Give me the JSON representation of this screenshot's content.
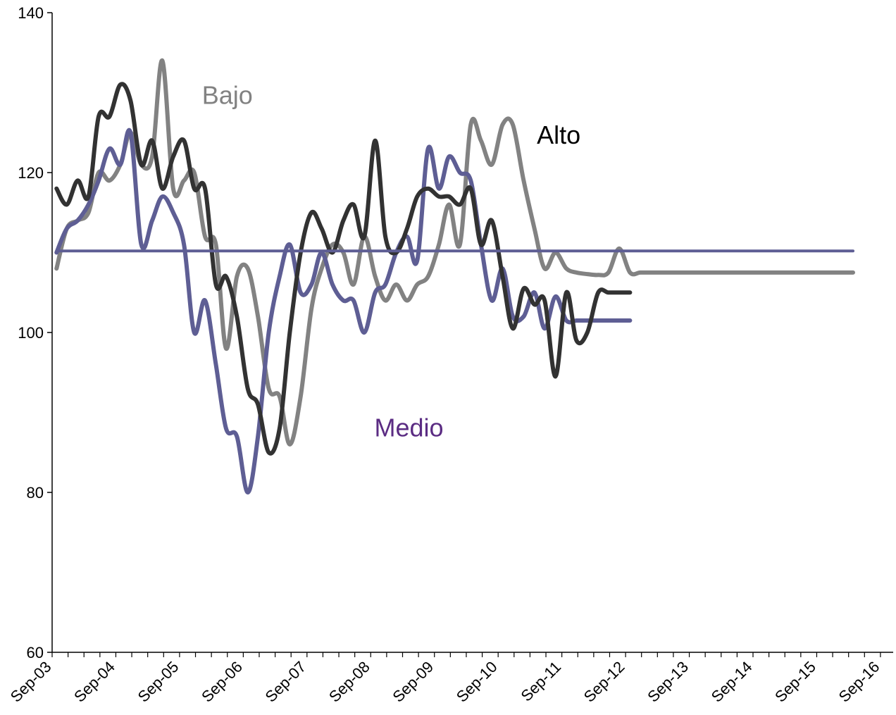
{
  "chart_data": {
    "type": "line",
    "title": "",
    "xlabel": "",
    "ylabel": "",
    "ylim": [
      60,
      140
    ],
    "yticks": [
      60,
      80,
      100,
      120,
      140
    ],
    "xtick_labels": [
      "Sep-03",
      "Sep-04",
      "Sep-05",
      "Sep-06",
      "Sep-07",
      "Sep-08",
      "Sep-09",
      "Sep-10",
      "Sep-11",
      "Sep-12",
      "Sep-13",
      "Sep-14",
      "Sep-15",
      "Sep-16"
    ],
    "x_range": [
      2003.6,
      2016.8
    ],
    "grid": false,
    "legend": "none",
    "series": [
      {
        "name": "Bajo",
        "color": "#828282",
        "x": [
          2003.67,
          2003.83,
          2004.0,
          2004.17,
          2004.33,
          2004.5,
          2004.67,
          2004.83,
          2005.0,
          2005.17,
          2005.33,
          2005.5,
          2005.67,
          2005.83,
          2006.0,
          2006.17,
          2006.33,
          2006.5,
          2006.67,
          2006.83,
          2007.0,
          2007.17,
          2007.33,
          2007.5,
          2007.67,
          2007.83,
          2008.0,
          2008.17,
          2008.33,
          2008.5,
          2008.67,
          2008.83,
          2009.0,
          2009.17,
          2009.33,
          2009.5,
          2009.67,
          2009.83,
          2010.0,
          2010.17,
          2010.33,
          2010.5,
          2010.67,
          2010.83,
          2011.0,
          2011.17,
          2011.33,
          2011.5,
          2011.67,
          2011.83,
          2012.0,
          2012.17,
          2012.33,
          2012.5,
          2012.67,
          2012.83,
          2013.0,
          2013.17,
          2013.33,
          2013.5,
          2013.67,
          2013.83,
          2014.0,
          2014.17,
          2014.33,
          2014.5,
          2014.67,
          2014.83,
          2015.0,
          2015.17,
          2015.33,
          2015.5,
          2015.67,
          2015.83,
          2016.0,
          2016.17
        ],
        "values": [
          108,
          113,
          114,
          115,
          120,
          119,
          121,
          125,
          121,
          122,
          134,
          118,
          119,
          120,
          112,
          111,
          98,
          107,
          108,
          102,
          93,
          92,
          86,
          92,
          103,
          108,
          111,
          110,
          106,
          112,
          107,
          104,
          106,
          104,
          106,
          107,
          111,
          116,
          111,
          126,
          124,
          121,
          126,
          126,
          119,
          113,
          108,
          110,
          108,
          107.5,
          107.3,
          107.2,
          107.5,
          110.5,
          107.5,
          107.5,
          107.5,
          107.5,
          107.5,
          107.5,
          107.5,
          107.5,
          107.5,
          107.5,
          107.5,
          107.5,
          107.5,
          107.5,
          107.5,
          107.5,
          107.5,
          107.5,
          107.5,
          107.5,
          107.5,
          107.5
        ]
      },
      {
        "name": "Medio",
        "color": "#5E5E94",
        "x": [
          2003.67,
          2003.83,
          2004.0,
          2004.17,
          2004.33,
          2004.5,
          2004.67,
          2004.83,
          2005.0,
          2005.17,
          2005.33,
          2005.5,
          2005.67,
          2005.83,
          2006.0,
          2006.17,
          2006.33,
          2006.5,
          2006.67,
          2006.83,
          2007.0,
          2007.17,
          2007.33,
          2007.5,
          2007.67,
          2007.83,
          2008.0,
          2008.17,
          2008.33,
          2008.5,
          2008.67,
          2008.83,
          2009.0,
          2009.17,
          2009.33,
          2009.5,
          2009.67,
          2009.83,
          2010.0,
          2010.17,
          2010.33,
          2010.5,
          2010.67,
          2010.83,
          2011.0,
          2011.17,
          2011.33,
          2011.5,
          2011.67,
          2011.83,
          2012.0,
          2012.17,
          2012.33,
          2012.5,
          2012.67
        ],
        "values": [
          110,
          113,
          114,
          116,
          119,
          123,
          121,
          125,
          111,
          114,
          117,
          115,
          111,
          100,
          104,
          96,
          88,
          87,
          80,
          87,
          100,
          107,
          111,
          105,
          106,
          110,
          106,
          104,
          104,
          100,
          105,
          106,
          110,
          112,
          109,
          123,
          118,
          122,
          120,
          119,
          111,
          104,
          108,
          102,
          102,
          105,
          100.5,
          104.5,
          101.5,
          101.5,
          101.5,
          101.5,
          101.5,
          101.5,
          101.5
        ]
      },
      {
        "name": "Alto",
        "color": "#323232",
        "x": [
          2003.67,
          2003.83,
          2004.0,
          2004.17,
          2004.33,
          2004.5,
          2004.67,
          2004.83,
          2005.0,
          2005.17,
          2005.33,
          2005.5,
          2005.67,
          2005.83,
          2006.0,
          2006.17,
          2006.33,
          2006.5,
          2006.67,
          2006.83,
          2007.0,
          2007.17,
          2007.33,
          2007.5,
          2007.67,
          2007.83,
          2008.0,
          2008.17,
          2008.33,
          2008.5,
          2008.67,
          2008.83,
          2009.0,
          2009.17,
          2009.33,
          2009.5,
          2009.67,
          2009.83,
          2010.0,
          2010.17,
          2010.33,
          2010.5,
          2010.67,
          2010.83,
          2011.0,
          2011.17,
          2011.33,
          2011.5,
          2011.67,
          2011.83,
          2012.0,
          2012.17,
          2012.33,
          2012.5,
          2012.67
        ],
        "values": [
          118,
          116,
          119,
          117,
          127,
          127,
          131,
          129,
          121,
          124,
          118,
          122,
          124,
          118,
          118,
          106,
          107,
          102,
          93,
          91,
          85,
          88,
          100,
          110,
          115,
          113,
          110,
          114,
          116,
          112,
          124,
          112,
          110,
          113,
          117,
          118,
          117,
          117,
          116,
          118,
          111,
          114,
          107,
          100.5,
          105.5,
          103.5,
          104,
          94.5,
          105,
          99,
          100,
          105,
          105,
          105,
          105
        ]
      },
      {
        "name": "",
        "color": "#5E5E94",
        "x": [
          2003.67,
          2016.17
        ],
        "values": [
          110.2,
          110.2
        ]
      }
    ],
    "annotations": [
      {
        "text": "Bajo",
        "color": "#828282",
        "x": 2006.35,
        "y": 128.6
      },
      {
        "text": "Alto",
        "color": "#000000",
        "x": 2011.55,
        "y": 123.6
      },
      {
        "text": "Medio",
        "color": "#5B2C83",
        "x": 2009.2,
        "y": 87.0
      }
    ]
  }
}
